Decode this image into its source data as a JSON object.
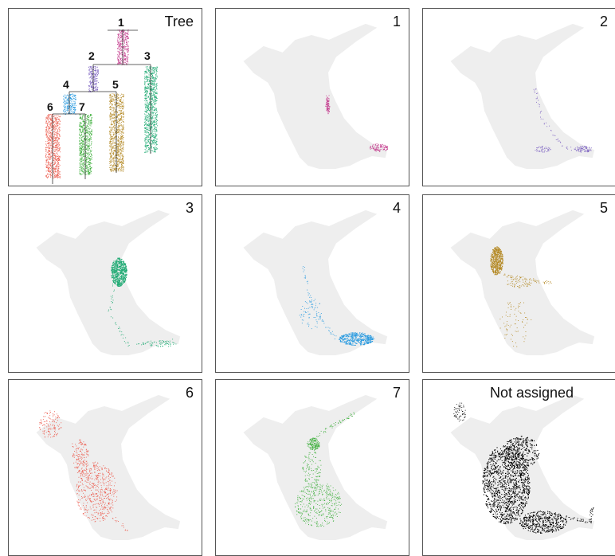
{
  "panels": [
    {
      "key": "tree",
      "label": "Tree"
    },
    {
      "key": "c1",
      "label": "1",
      "color": "#c2368a"
    },
    {
      "key": "c2",
      "label": "2",
      "color": "#7b5fc0"
    },
    {
      "key": "c3",
      "label": "3",
      "color": "#1faa73"
    },
    {
      "key": "c4",
      "label": "4",
      "color": "#2a9be0"
    },
    {
      "key": "c5",
      "label": "5",
      "color": "#b58a27"
    },
    {
      "key": "c6",
      "label": "6",
      "color": "#ec5a4c"
    },
    {
      "key": "c7",
      "label": "7",
      "color": "#3cae3a"
    },
    {
      "key": "na",
      "label": "Not assigned",
      "color": "#000000"
    }
  ],
  "tree": {
    "nodes": [
      {
        "label": "1",
        "color": "#c2368a"
      },
      {
        "label": "2",
        "color": "#7b5fc0"
      },
      {
        "label": "3",
        "color": "#1faa73"
      },
      {
        "label": "4",
        "color": "#2a9be0"
      },
      {
        "label": "5",
        "color": "#b58a27"
      },
      {
        "label": "6",
        "color": "#ec5a4c"
      },
      {
        "label": "7",
        "color": "#3cae3a"
      }
    ]
  },
  "background_color": "#eeeeee"
}
